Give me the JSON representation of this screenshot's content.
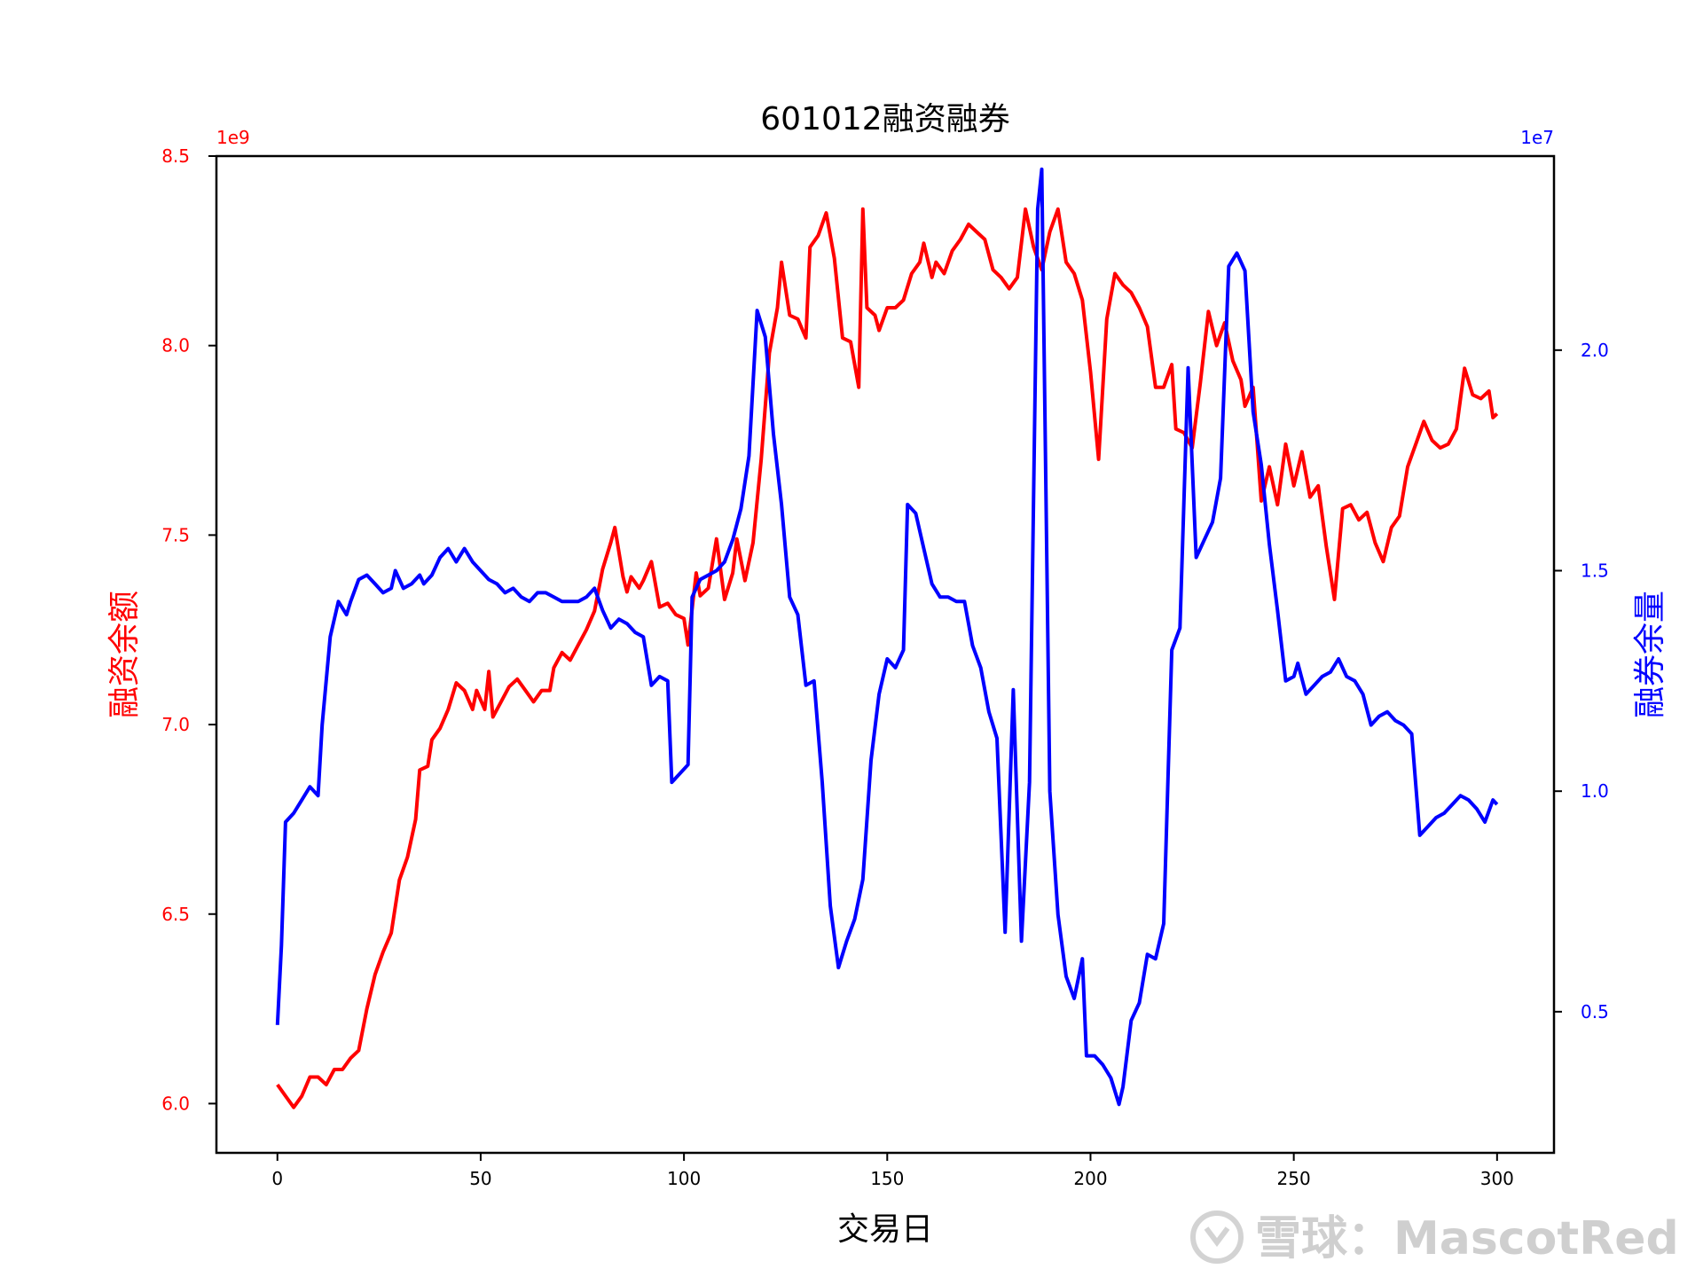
{
  "chart_data": {
    "type": "line",
    "title": "601012融资融券",
    "xlabel": "交易日",
    "xlim": [
      -15,
      314
    ],
    "xticks": [
      0,
      50,
      100,
      150,
      200,
      250,
      300
    ],
    "grid": false,
    "left_axis": {
      "label": "融资余额",
      "color": "#ff0000",
      "offset_text": "1e9",
      "ylim": [
        5.87,
        8.5
      ],
      "ticks": [
        6.0,
        6.5,
        7.0,
        7.5,
        8.0,
        8.5
      ],
      "tick_labels": [
        "6.0",
        "6.5",
        "7.0",
        "7.5",
        "8.0",
        "8.5"
      ]
    },
    "right_axis": {
      "label": "融券余量",
      "color": "#0000ff",
      "offset_text": "1e7",
      "ylim": [
        0.18,
        2.44
      ],
      "ticks": [
        0.5,
        1.0,
        1.5,
        2.0
      ],
      "tick_labels": [
        "0.5",
        "1.0",
        "1.5",
        "2.0"
      ]
    },
    "series": [
      {
        "axis": "left",
        "color": "#ff0000",
        "points": [
          [
            0,
            6.05
          ],
          [
            2,
            6.02
          ],
          [
            4,
            5.99
          ],
          [
            6,
            6.02
          ],
          [
            8,
            6.07
          ],
          [
            10,
            6.07
          ],
          [
            12,
            6.05
          ],
          [
            14,
            6.09
          ],
          [
            16,
            6.09
          ],
          [
            18,
            6.12
          ],
          [
            20,
            6.14
          ],
          [
            22,
            6.25
          ],
          [
            24,
            6.34
          ],
          [
            26,
            6.4
          ],
          [
            28,
            6.45
          ],
          [
            30,
            6.59
          ],
          [
            32,
            6.65
          ],
          [
            34,
            6.75
          ],
          [
            35,
            6.88
          ],
          [
            37,
            6.89
          ],
          [
            38,
            6.96
          ],
          [
            40,
            6.99
          ],
          [
            42,
            7.04
          ],
          [
            44,
            7.11
          ],
          [
            46,
            7.09
          ],
          [
            48,
            7.04
          ],
          [
            49,
            7.09
          ],
          [
            51,
            7.04
          ],
          [
            52,
            7.14
          ],
          [
            53,
            7.02
          ],
          [
            55,
            7.06
          ],
          [
            57,
            7.1
          ],
          [
            59,
            7.12
          ],
          [
            61,
            7.09
          ],
          [
            63,
            7.06
          ],
          [
            65,
            7.09
          ],
          [
            67,
            7.09
          ],
          [
            68,
            7.15
          ],
          [
            70,
            7.19
          ],
          [
            72,
            7.17
          ],
          [
            74,
            7.21
          ],
          [
            76,
            7.25
          ],
          [
            78,
            7.3
          ],
          [
            80,
            7.41
          ],
          [
            82,
            7.48
          ],
          [
            83,
            7.52
          ],
          [
            85,
            7.39
          ],
          [
            86,
            7.35
          ],
          [
            87,
            7.39
          ],
          [
            89,
            7.36
          ],
          [
            90,
            7.38
          ],
          [
            92,
            7.43
          ],
          [
            94,
            7.31
          ],
          [
            96,
            7.32
          ],
          [
            98,
            7.29
          ],
          [
            100,
            7.28
          ],
          [
            101,
            7.21
          ],
          [
            103,
            7.4
          ],
          [
            104,
            7.34
          ],
          [
            106,
            7.36
          ],
          [
            108,
            7.49
          ],
          [
            110,
            7.33
          ],
          [
            112,
            7.4
          ],
          [
            113,
            7.49
          ],
          [
            115,
            7.38
          ],
          [
            117,
            7.48
          ],
          [
            119,
            7.7
          ],
          [
            121,
            7.98
          ],
          [
            123,
            8.1
          ],
          [
            124,
            8.22
          ],
          [
            126,
            8.08
          ],
          [
            128,
            8.07
          ],
          [
            130,
            8.02
          ],
          [
            131,
            8.26
          ],
          [
            133,
            8.29
          ],
          [
            135,
            8.35
          ],
          [
            137,
            8.23
          ],
          [
            139,
            8.02
          ],
          [
            141,
            8.01
          ],
          [
            143,
            7.89
          ],
          [
            144,
            8.36
          ],
          [
            145,
            8.1
          ],
          [
            147,
            8.08
          ],
          [
            148,
            8.04
          ],
          [
            150,
            8.1
          ],
          [
            152,
            8.1
          ],
          [
            154,
            8.12
          ],
          [
            156,
            8.19
          ],
          [
            158,
            8.22
          ],
          [
            159,
            8.27
          ],
          [
            161,
            8.18
          ],
          [
            162,
            8.22
          ],
          [
            164,
            8.19
          ],
          [
            166,
            8.25
          ],
          [
            168,
            8.28
          ],
          [
            170,
            8.32
          ],
          [
            172,
            8.3
          ],
          [
            174,
            8.28
          ],
          [
            176,
            8.2
          ],
          [
            178,
            8.18
          ],
          [
            180,
            8.15
          ],
          [
            182,
            8.18
          ],
          [
            184,
            8.36
          ],
          [
            186,
            8.26
          ],
          [
            188,
            8.2
          ],
          [
            190,
            8.3
          ],
          [
            192,
            8.36
          ],
          [
            194,
            8.22
          ],
          [
            196,
            8.19
          ],
          [
            198,
            8.12
          ],
          [
            200,
            7.93
          ],
          [
            202,
            7.7
          ],
          [
            204,
            8.07
          ],
          [
            206,
            8.19
          ],
          [
            208,
            8.16
          ],
          [
            210,
            8.14
          ],
          [
            212,
            8.1
          ],
          [
            214,
            8.05
          ],
          [
            216,
            7.89
          ],
          [
            218,
            7.89
          ],
          [
            220,
            7.95
          ],
          [
            221,
            7.78
          ],
          [
            223,
            7.77
          ],
          [
            225,
            7.73
          ],
          [
            227,
            7.9
          ],
          [
            229,
            8.09
          ],
          [
            231,
            8.0
          ],
          [
            233,
            8.06
          ],
          [
            235,
            7.96
          ],
          [
            237,
            7.91
          ],
          [
            238,
            7.84
          ],
          [
            240,
            7.89
          ],
          [
            242,
            7.59
          ],
          [
            244,
            7.68
          ],
          [
            246,
            7.58
          ],
          [
            248,
            7.74
          ],
          [
            250,
            7.63
          ],
          [
            252,
            7.72
          ],
          [
            254,
            7.6
          ],
          [
            256,
            7.63
          ],
          [
            258,
            7.47
          ],
          [
            260,
            7.33
          ],
          [
            262,
            7.57
          ],
          [
            264,
            7.58
          ],
          [
            266,
            7.54
          ],
          [
            268,
            7.56
          ],
          [
            270,
            7.48
          ],
          [
            272,
            7.43
          ],
          [
            274,
            7.52
          ],
          [
            276,
            7.55
          ],
          [
            278,
            7.68
          ],
          [
            280,
            7.74
          ],
          [
            282,
            7.8
          ],
          [
            284,
            7.75
          ],
          [
            286,
            7.73
          ],
          [
            288,
            7.74
          ],
          [
            290,
            7.78
          ],
          [
            292,
            7.94
          ],
          [
            294,
            7.87
          ],
          [
            296,
            7.86
          ],
          [
            298,
            7.88
          ],
          [
            299,
            7.81
          ],
          [
            300,
            7.82
          ]
        ]
      },
      {
        "axis": "right",
        "color": "#0000ff",
        "points": [
          [
            0,
            0.47
          ],
          [
            1,
            0.65
          ],
          [
            2,
            0.93
          ],
          [
            4,
            0.95
          ],
          [
            6,
            0.98
          ],
          [
            8,
            1.01
          ],
          [
            10,
            0.99
          ],
          [
            11,
            1.15
          ],
          [
            13,
            1.35
          ],
          [
            15,
            1.43
          ],
          [
            17,
            1.4
          ],
          [
            18,
            1.43
          ],
          [
            20,
            1.48
          ],
          [
            22,
            1.49
          ],
          [
            24,
            1.47
          ],
          [
            26,
            1.45
          ],
          [
            28,
            1.46
          ],
          [
            29,
            1.5
          ],
          [
            31,
            1.46
          ],
          [
            33,
            1.47
          ],
          [
            35,
            1.49
          ],
          [
            36,
            1.47
          ],
          [
            38,
            1.49
          ],
          [
            40,
            1.53
          ],
          [
            42,
            1.55
          ],
          [
            44,
            1.52
          ],
          [
            46,
            1.55
          ],
          [
            48,
            1.52
          ],
          [
            50,
            1.5
          ],
          [
            52,
            1.48
          ],
          [
            54,
            1.47
          ],
          [
            56,
            1.45
          ],
          [
            58,
            1.46
          ],
          [
            60,
            1.44
          ],
          [
            62,
            1.43
          ],
          [
            64,
            1.45
          ],
          [
            66,
            1.45
          ],
          [
            68,
            1.44
          ],
          [
            70,
            1.43
          ],
          [
            72,
            1.43
          ],
          [
            74,
            1.43
          ],
          [
            76,
            1.44
          ],
          [
            78,
            1.46
          ],
          [
            80,
            1.41
          ],
          [
            82,
            1.37
          ],
          [
            84,
            1.39
          ],
          [
            86,
            1.38
          ],
          [
            88,
            1.36
          ],
          [
            90,
            1.35
          ],
          [
            92,
            1.24
          ],
          [
            94,
            1.26
          ],
          [
            96,
            1.25
          ],
          [
            97,
            1.02
          ],
          [
            99,
            1.04
          ],
          [
            101,
            1.06
          ],
          [
            102,
            1.44
          ],
          [
            104,
            1.48
          ],
          [
            106,
            1.49
          ],
          [
            108,
            1.5
          ],
          [
            110,
            1.52
          ],
          [
            112,
            1.57
          ],
          [
            114,
            1.64
          ],
          [
            116,
            1.76
          ],
          [
            118,
            2.09
          ],
          [
            120,
            2.03
          ],
          [
            122,
            1.81
          ],
          [
            124,
            1.65
          ],
          [
            126,
            1.44
          ],
          [
            128,
            1.4
          ],
          [
            130,
            1.24
          ],
          [
            132,
            1.25
          ],
          [
            134,
            1.02
          ],
          [
            136,
            0.74
          ],
          [
            138,
            0.6
          ],
          [
            140,
            0.66
          ],
          [
            142,
            0.71
          ],
          [
            144,
            0.8
          ],
          [
            146,
            1.07
          ],
          [
            148,
            1.22
          ],
          [
            150,
            1.3
          ],
          [
            152,
            1.28
          ],
          [
            154,
            1.32
          ],
          [
            155,
            1.65
          ],
          [
            157,
            1.63
          ],
          [
            159,
            1.55
          ],
          [
            161,
            1.47
          ],
          [
            163,
            1.44
          ],
          [
            165,
            1.44
          ],
          [
            167,
            1.43
          ],
          [
            169,
            1.43
          ],
          [
            171,
            1.33
          ],
          [
            173,
            1.28
          ],
          [
            175,
            1.18
          ],
          [
            177,
            1.12
          ],
          [
            179,
            0.68
          ],
          [
            181,
            1.23
          ],
          [
            183,
            0.66
          ],
          [
            185,
            1.02
          ],
          [
            187,
            2.32
          ],
          [
            188,
            2.41
          ],
          [
            190,
            1.0
          ],
          [
            192,
            0.72
          ],
          [
            194,
            0.58
          ],
          [
            196,
            0.53
          ],
          [
            198,
            0.62
          ],
          [
            199,
            0.4
          ],
          [
            201,
            0.4
          ],
          [
            203,
            0.38
          ],
          [
            205,
            0.35
          ],
          [
            207,
            0.29
          ],
          [
            208,
            0.33
          ],
          [
            210,
            0.48
          ],
          [
            212,
            0.52
          ],
          [
            214,
            0.63
          ],
          [
            216,
            0.62
          ],
          [
            218,
            0.7
          ],
          [
            220,
            1.32
          ],
          [
            222,
            1.37
          ],
          [
            224,
            1.96
          ],
          [
            226,
            1.53
          ],
          [
            228,
            1.57
          ],
          [
            230,
            1.61
          ],
          [
            232,
            1.71
          ],
          [
            234,
            2.19
          ],
          [
            236,
            2.22
          ],
          [
            238,
            2.18
          ],
          [
            240,
            1.86
          ],
          [
            242,
            1.74
          ],
          [
            244,
            1.56
          ],
          [
            246,
            1.41
          ],
          [
            248,
            1.25
          ],
          [
            250,
            1.26
          ],
          [
            251,
            1.29
          ],
          [
            253,
            1.22
          ],
          [
            255,
            1.24
          ],
          [
            257,
            1.26
          ],
          [
            259,
            1.27
          ],
          [
            261,
            1.3
          ],
          [
            263,
            1.26
          ],
          [
            265,
            1.25
          ],
          [
            267,
            1.22
          ],
          [
            269,
            1.15
          ],
          [
            271,
            1.17
          ],
          [
            273,
            1.18
          ],
          [
            275,
            1.16
          ],
          [
            277,
            1.15
          ],
          [
            279,
            1.13
          ],
          [
            281,
            0.9
          ],
          [
            283,
            0.92
          ],
          [
            285,
            0.94
          ],
          [
            287,
            0.95
          ],
          [
            289,
            0.97
          ],
          [
            291,
            0.99
          ],
          [
            293,
            0.98
          ],
          [
            295,
            0.96
          ],
          [
            297,
            0.93
          ],
          [
            299,
            0.98
          ],
          [
            300,
            0.97
          ]
        ]
      }
    ],
    "watermark": "雪球：MascotRed"
  }
}
